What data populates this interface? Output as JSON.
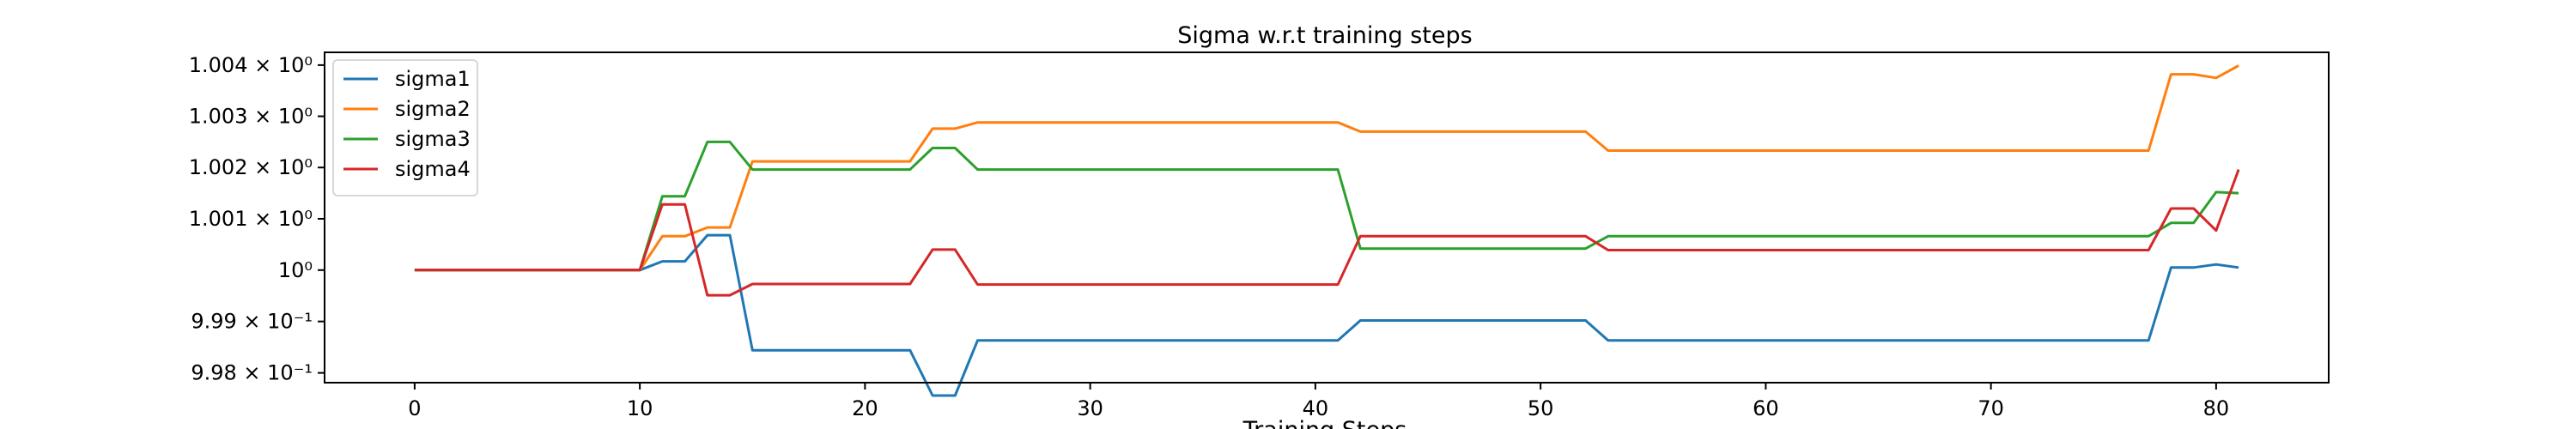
{
  "chart_data": {
    "type": "line",
    "title": "Sigma w.r.t training steps",
    "xlabel": "Training Steps",
    "ylabel": "",
    "y_scale": "log",
    "xlim": [
      -4,
      85
    ],
    "ylim": [
      0.99781,
      1.00425
    ],
    "grid": false,
    "legend_position": "top-left",
    "x_ticks": [
      0,
      10,
      20,
      30,
      40,
      50,
      60,
      70,
      80
    ],
    "y_ticks": [
      {
        "value": 0.998,
        "label": "9.98 × 10⁻¹"
      },
      {
        "value": 0.999,
        "label": "9.99 × 10⁻¹"
      },
      {
        "value": 1.0,
        "label": "10⁰"
      },
      {
        "value": 1.001,
        "label": "1.001 × 10⁰"
      },
      {
        "value": 1.002,
        "label": "1.002 × 10⁰"
      },
      {
        "value": 1.003,
        "label": "1.003 × 10⁰"
      },
      {
        "value": 1.004,
        "label": "1.004 × 10⁰"
      }
    ],
    "series": [
      {
        "name": "sigma1",
        "color": "#1f77b4",
        "points": [
          [
            0,
            1.0
          ],
          [
            10,
            1.0
          ],
          [
            11,
            1.00017
          ],
          [
            12,
            1.00017
          ],
          [
            13,
            1.00068
          ],
          [
            14,
            1.00068
          ],
          [
            15,
            0.99844
          ],
          [
            22,
            0.99844
          ],
          [
            23,
            0.99756
          ],
          [
            24,
            0.99756
          ],
          [
            25,
            0.99863
          ],
          [
            41,
            0.99863
          ],
          [
            42,
            0.99902
          ],
          [
            52,
            0.99902
          ],
          [
            53,
            0.99863
          ],
          [
            77,
            0.99863
          ],
          [
            78,
            1.00005
          ],
          [
            79,
            1.00005
          ],
          [
            80,
            1.00011
          ],
          [
            81,
            1.00005
          ]
        ]
      },
      {
        "name": "sigma2",
        "color": "#ff7f0e",
        "points": [
          [
            0,
            1.0
          ],
          [
            10,
            1.0
          ],
          [
            11,
            1.00066
          ],
          [
            12,
            1.00066
          ],
          [
            13,
            1.00083
          ],
          [
            14,
            1.00083
          ],
          [
            15,
            1.00212
          ],
          [
            22,
            1.00212
          ],
          [
            23,
            1.00276
          ],
          [
            24,
            1.00276
          ],
          [
            25,
            1.00288
          ],
          [
            41,
            1.00288
          ],
          [
            42,
            1.0027
          ],
          [
            52,
            1.0027
          ],
          [
            53,
            1.00233
          ],
          [
            77,
            1.00233
          ],
          [
            78,
            1.00382
          ],
          [
            79,
            1.00382
          ],
          [
            80,
            1.00375
          ],
          [
            81,
            1.00399
          ]
        ]
      },
      {
        "name": "sigma3",
        "color": "#2ca02c",
        "points": [
          [
            0,
            1.0
          ],
          [
            10,
            1.0
          ],
          [
            11,
            1.00144
          ],
          [
            12,
            1.00144
          ],
          [
            13,
            1.0025
          ],
          [
            14,
            1.0025
          ],
          [
            15,
            1.00196
          ],
          [
            22,
            1.00196
          ],
          [
            23,
            1.00238
          ],
          [
            24,
            1.00238
          ],
          [
            25,
            1.00196
          ],
          [
            41,
            1.00196
          ],
          [
            42,
            1.00042
          ],
          [
            52,
            1.00042
          ],
          [
            53,
            1.00066
          ],
          [
            77,
            1.00066
          ],
          [
            78,
            1.00092
          ],
          [
            79,
            1.00092
          ],
          [
            80,
            1.00152
          ],
          [
            81,
            1.0015
          ]
        ]
      },
      {
        "name": "sigma4",
        "color": "#d62728",
        "points": [
          [
            0,
            1.0
          ],
          [
            10,
            1.0
          ],
          [
            11,
            1.00128
          ],
          [
            12,
            1.00128
          ],
          [
            13,
            0.99951
          ],
          [
            14,
            0.99951
          ],
          [
            15,
            0.99973
          ],
          [
            22,
            0.99973
          ],
          [
            23,
            1.0004
          ],
          [
            24,
            1.0004
          ],
          [
            25,
            0.99972
          ],
          [
            41,
            0.99972
          ],
          [
            42,
            1.00066
          ],
          [
            52,
            1.00066
          ],
          [
            53,
            1.00039
          ],
          [
            77,
            1.00039
          ],
          [
            78,
            1.0012
          ],
          [
            79,
            1.0012
          ],
          [
            80,
            1.00077
          ],
          [
            81,
            1.00196
          ]
        ]
      }
    ]
  }
}
